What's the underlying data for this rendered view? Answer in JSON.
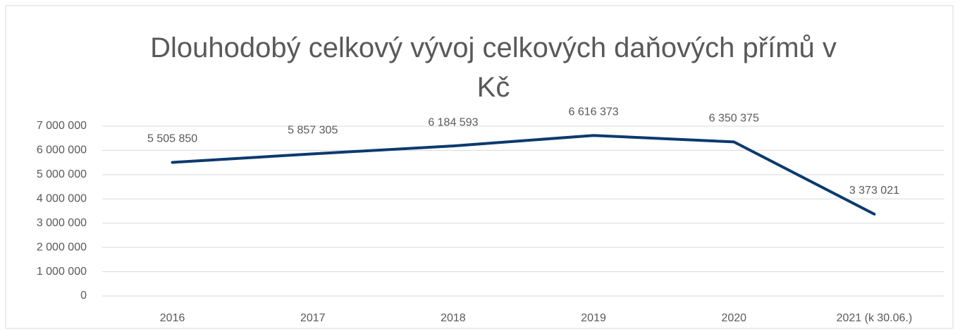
{
  "chart_data": {
    "type": "line",
    "title": "Dlouhodobý celkový vývoj celkových daňových přímů v Kč",
    "categories": [
      "2016",
      "2017",
      "2018",
      "2019",
      "2020",
      "2021 (k 30.06.)"
    ],
    "series": [
      {
        "name": null,
        "color": "#0b3a6e",
        "values": [
          5505850,
          5857305,
          6184593,
          6616373,
          6350375,
          3373021
        ],
        "value_labels": [
          "5 505 850",
          "5 857 305",
          "6 184 593",
          "6 616 373",
          "6 350 375",
          "3 373 021"
        ]
      }
    ],
    "ylim": [
      0,
      7000000
    ],
    "yticks": [
      0,
      {
        "value": 1000000,
        "label": "1 000 000"
      },
      {
        "value": 2000000,
        "label": "2 000 000"
      },
      {
        "value": 3000000,
        "label": "3 000 000"
      },
      {
        "value": 4000000,
        "label": "4 000 000"
      },
      {
        "value": 5000000,
        "label": "5 000 000"
      },
      {
        "value": 6000000,
        "label": "6 000 000"
      },
      {
        "value": 7000000,
        "label": "7 000 000"
      }
    ],
    "grid": true
  }
}
